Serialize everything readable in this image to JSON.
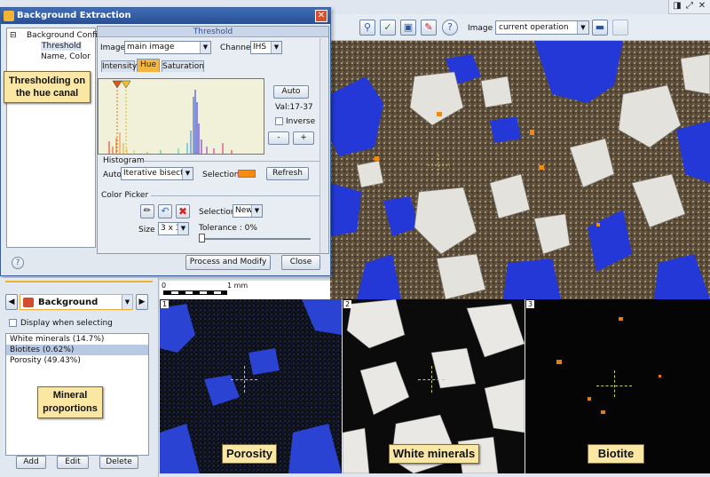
{
  "window": {
    "controls": [
      "◨",
      "⤢",
      "✕"
    ]
  },
  "toolbar": {
    "icons": [
      "search-icon",
      "checklist-icon",
      "frame-icon",
      "edit-icon",
      "help-icon",
      "layout-icon",
      "blank-icon"
    ],
    "image_label": "Image :",
    "image_value": "current operation"
  },
  "dialog": {
    "title": "Background Extraction",
    "tree": {
      "root": "Background Config",
      "children": [
        "Threshold",
        "Name, Color"
      ]
    },
    "panel_header": "Threshold",
    "image_label": "Image:",
    "image_value": "main image",
    "channel_label": "Channel:",
    "channel_value": "IHS",
    "tabs": [
      "Intensity",
      "Hue",
      "Saturation"
    ],
    "active_tab": "Hue",
    "auto_button": "Auto",
    "val_text": "Val:17-37",
    "inverse_label": "Inverse",
    "minus_button": "-",
    "plus_button": "+",
    "histogram_title": "Histogram",
    "hist_auto_label": "Auto :",
    "hist_method": "Iterative bisection",
    "selection_label": "Selection :",
    "selection_color": "#f58b11",
    "refresh_button": "Refresh",
    "color_picker_title": "Color Picker",
    "cp_selection_label": "Selection :",
    "cp_selection_value": "New",
    "size_label": "Size :",
    "size_value": "3 x 3",
    "tolerance_label": "Tolerance : 0%",
    "tolerance": 0,
    "process_button": "Process and Modify",
    "close_button": "Close",
    "help_icon": "help-icon"
  },
  "callouts": {
    "hue": "Thresholding on the hue canal",
    "minerals": "Mineral proportions",
    "porosity": "Porosity",
    "white": "White minerals",
    "biotite": "Biotite"
  },
  "scale": {
    "zero": "0",
    "one": "1 mm"
  },
  "panels": [
    "1",
    "2",
    "3"
  ],
  "class_panel": {
    "selected_class": "Background",
    "display_label": "Display when selecting",
    "items": [
      "White minerals (14.7%)",
      "Biotites (0.62%)",
      "Porosity (49.43%)"
    ],
    "selected_index": 1,
    "add": "Add",
    "edit": "Edit",
    "delete": "Delete"
  },
  "colors": {
    "accent": "#f4b63b",
    "porosity": "#2b45d8",
    "biotite": "#f58b11"
  }
}
